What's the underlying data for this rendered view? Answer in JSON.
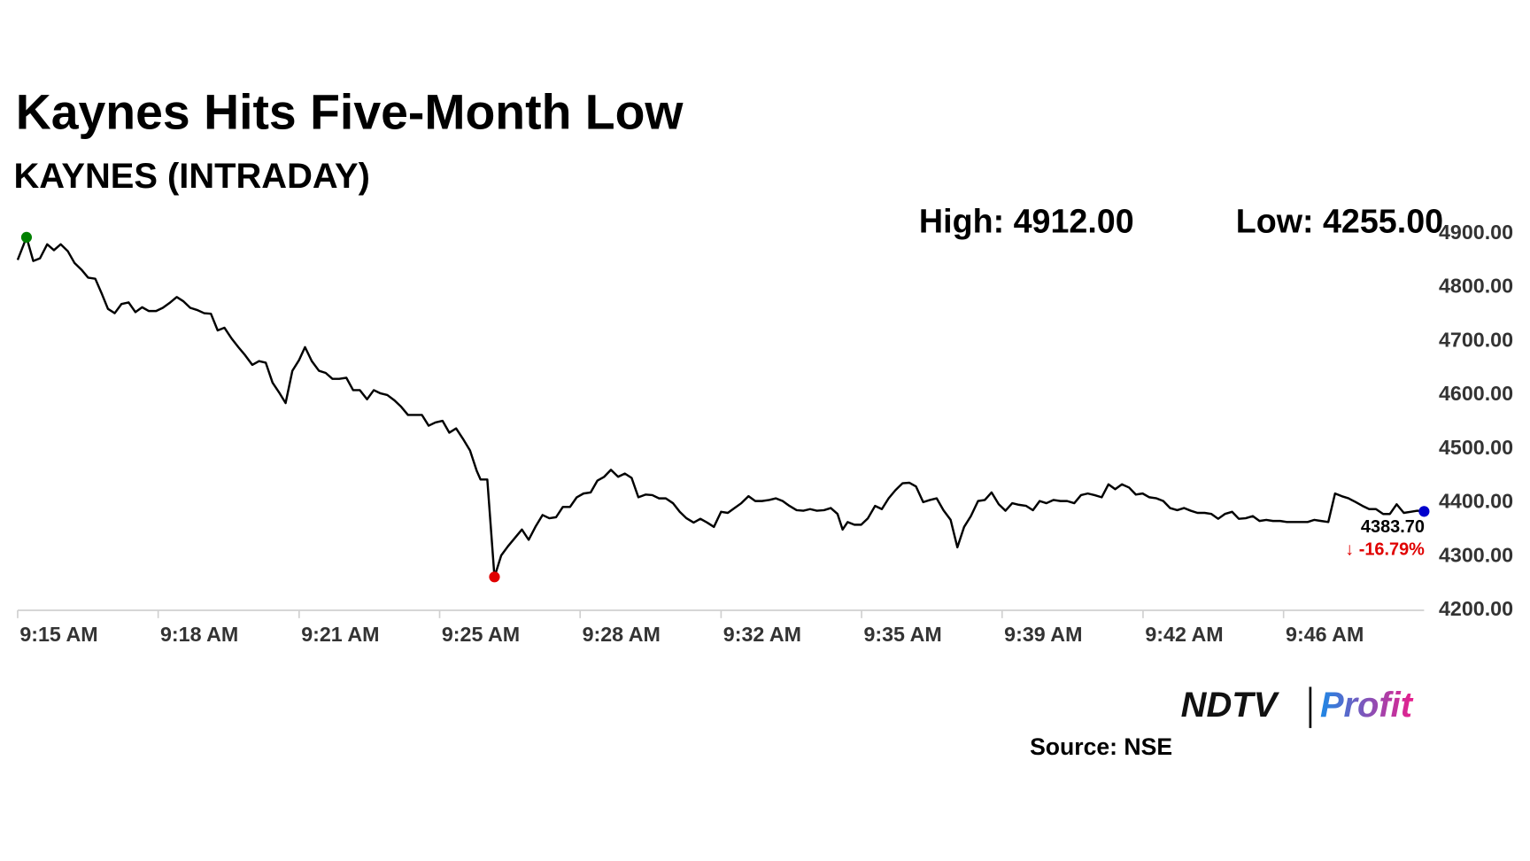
{
  "chart_data": {
    "type": "line",
    "title": "Kaynes Hits Five-Month Low",
    "subtitle": "KAYNES (INTRADAY)",
    "high_label": "High: 4912.00",
    "low_label": "Low: 4255.00",
    "last_label": "4383.70",
    "change_label": "↓ -16.79%",
    "color": "#000000",
    "marker_colors": {
      "high": "#008000",
      "low": "#e00000",
      "last": "#0000cc"
    },
    "change_color": "#e00000",
    "x": [
      0,
      0.21,
      0.37,
      0.53,
      0.7,
      0.86,
      1.02,
      1.19,
      1.35,
      1.51,
      1.67,
      1.84,
      2.0,
      2.14,
      2.3,
      2.46,
      2.63,
      2.79,
      2.95,
      3.11,
      3.28,
      3.44,
      3.6,
      3.77,
      3.93,
      4.09,
      4.25,
      4.42,
      4.58,
      4.74,
      4.9,
      5.07,
      5.23,
      5.39,
      5.56,
      5.72,
      5.88,
      6.04,
      6.21,
      6.35,
      6.51,
      6.67,
      6.81,
      6.97,
      7.14,
      7.3,
      7.46,
      7.62,
      7.79,
      7.95,
      8.11,
      8.28,
      8.44,
      8.6,
      8.76,
      8.93,
      9.09,
      9.25,
      9.41,
      9.58,
      9.74,
      9.9,
      10.07,
      10.23,
      10.39,
      10.55,
      10.72,
      10.88,
      10.97,
      11.13,
      11.3,
      11.46,
      11.62,
      11.79,
      11.95,
      12.11,
      12.27,
      12.44,
      12.6,
      12.76,
      12.92,
      13.09,
      13.25,
      13.41,
      13.58,
      13.74,
      13.9,
      14.06,
      14.23,
      14.39,
      14.55,
      14.71,
      14.88,
      15.04,
      15.2,
      15.36,
      15.53,
      15.69,
      15.85,
      16.02,
      16.18,
      16.34,
      16.5,
      16.67,
      16.83,
      16.99,
      17.15,
      17.32,
      17.48,
      17.64,
      17.81,
      17.97,
      18.13,
      18.29,
      18.46,
      18.62,
      18.78,
      18.94,
      19.11,
      19.27,
      19.43,
      19.55,
      19.67,
      19.83,
      19.99,
      20.15,
      20.32,
      20.48,
      20.64,
      20.8,
      20.97,
      21.13,
      21.29,
      21.46,
      21.62,
      21.78,
      21.94,
      22.11,
      22.27,
      22.43,
      22.59,
      22.76,
      22.92,
      23.08,
      23.25,
      23.41,
      23.57,
      23.73,
      23.9,
      24.06,
      24.22,
      24.38,
      24.55,
      24.71,
      24.87,
      25.04,
      25.2,
      25.36,
      25.52,
      25.69,
      25.85,
      26.01,
      26.17,
      26.34,
      26.5,
      26.66,
      26.82,
      26.99,
      27.15,
      27.31,
      27.48,
      27.64,
      27.8,
      27.96,
      28.13,
      28.29,
      28.45,
      28.61,
      28.78,
      28.94,
      29.1,
      29.27,
      29.43,
      29.59,
      29.75,
      29.92,
      30.08,
      30.24,
      30.4,
      30.57,
      30.73,
      30.89,
      31.06,
      31.22,
      31.38,
      31.54,
      31.71,
      31.87,
      32.03,
      32.19,
      32.36,
      32.52,
      32.68,
      32.85,
      33.01,
      33.17,
      33.33
    ],
    "values": [
      4851,
      4893,
      4849,
      4854,
      4880,
      4869,
      4880,
      4867,
      4845,
      4833,
      4818,
      4816,
      4787,
      4760,
      4752,
      4769,
      4772,
      4754,
      4763,
      4756,
      4756,
      4762,
      4771,
      4782,
      4774,
      4762,
      4758,
      4752,
      4751,
      4720,
      4725,
      4705,
      4689,
      4674,
      4656,
      4663,
      4660,
      4623,
      4603,
      4585,
      4645,
      4665,
      4689,
      4663,
      4645,
      4641,
      4630,
      4630,
      4632,
      4609,
      4609,
      4592,
      4609,
      4603,
      4600,
      4590,
      4578,
      4563,
      4563,
      4563,
      4543,
      4549,
      4552,
      4530,
      4538,
      4519,
      4497,
      4459,
      4443,
      4443,
      4262,
      4302,
      4319,
      4335,
      4350,
      4331,
      4355,
      4377,
      4371,
      4373,
      4392,
      4392,
      4410,
      4417,
      4419,
      4441,
      4448,
      4461,
      4448,
      4454,
      4446,
      4410,
      4415,
      4414,
      4408,
      4408,
      4399,
      4383,
      4371,
      4363,
      4370,
      4363,
      4355,
      4383,
      4381,
      4390,
      4399,
      4412,
      4403,
      4403,
      4405,
      4408,
      4403,
      4394,
      4386,
      4385,
      4388,
      4385,
      4386,
      4390,
      4379,
      4350,
      4364,
      4359,
      4359,
      4371,
      4394,
      4388,
      4408,
      4423,
      4436,
      4437,
      4430,
      4401,
      4405,
      4408,
      4386,
      4368,
      4317,
      4355,
      4375,
      4403,
      4405,
      4419,
      4397,
      4385,
      4399,
      4396,
      4394,
      4386,
      4403,
      4399,
      4405,
      4403,
      4403,
      4399,
      4414,
      4417,
      4414,
      4410,
      4434,
      4425,
      4434,
      4428,
      4415,
      4417,
      4410,
      4408,
      4403,
      4390,
      4386,
      4390,
      4385,
      4381,
      4381,
      4379,
      4370,
      4379,
      4383,
      4370,
      4371,
      4375,
      4366,
      4368,
      4366,
      4366,
      4364,
      4364,
      4364,
      4364,
      4368,
      4366,
      4364,
      4417,
      4412,
      4408,
      4401,
      4394,
      4388,
      4388,
      4379,
      4379,
      4397,
      4381,
      4383,
      4385,
      4383.7
    ],
    "xlim": [
      0,
      33.33
    ],
    "xticks": [
      {
        "value": 0,
        "label": "9:15 AM"
      },
      {
        "value": 3.33,
        "label": "9:18 AM"
      },
      {
        "value": 6.67,
        "label": "9:21 AM"
      },
      {
        "value": 10,
        "label": "9:25 AM"
      },
      {
        "value": 13.33,
        "label": "9:28 AM"
      },
      {
        "value": 16.67,
        "label": "9:32 AM"
      },
      {
        "value": 20,
        "label": "9:35 AM"
      },
      {
        "value": 23.33,
        "label": "9:39 AM"
      },
      {
        "value": 26.67,
        "label": "9:42 AM"
      },
      {
        "value": 30,
        "label": "9:46 AM"
      }
    ],
    "ylim": [
      4200,
      4900
    ],
    "yticks": [
      {
        "value": 4200,
        "label": "4200.00"
      },
      {
        "value": 4300,
        "label": "4300.00"
      },
      {
        "value": 4400,
        "label": "4400.00"
      },
      {
        "value": 4500,
        "label": "4500.00"
      },
      {
        "value": 4600,
        "label": "4600.00"
      },
      {
        "value": 4700,
        "label": "4700.00"
      },
      {
        "value": 4800,
        "label": "4800.00"
      },
      {
        "value": 4900,
        "label": "4900.00"
      }
    ],
    "brand": [
      "NDTV",
      "Profit"
    ],
    "source": "Source: NSE"
  }
}
